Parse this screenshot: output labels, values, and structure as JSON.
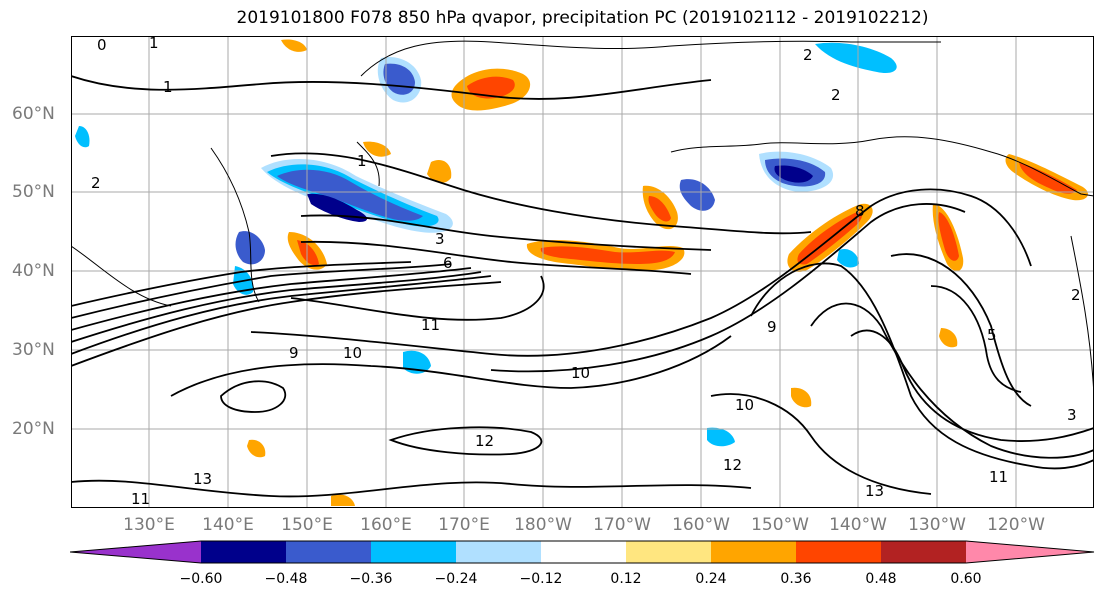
{
  "title": "2019101800 F078 850 hPa qvapor, precipitation PC (2019102112 - 2019102212)",
  "lat_labels": [
    "60°N",
    "50°N",
    "40°N",
    "30°N",
    "20°N"
  ],
  "lon_labels": [
    "130°E",
    "140°E",
    "150°E",
    "160°E",
    "170°E",
    "180°W",
    "170°W",
    "160°W",
    "150°W",
    "140°W",
    "130°W",
    "120°W"
  ],
  "colorbar": {
    "labels": [
      "−0.60",
      "−0.48",
      "−0.36",
      "−0.24",
      "−0.12",
      "0.12",
      "0.24",
      "0.36",
      "0.48",
      "0.60"
    ],
    "colors": [
      "#9932cc",
      "#00008b",
      "#3a5bcd",
      "#00bfff",
      "#b0e0ff",
      "#ffffff",
      "#ffe680",
      "#ffa500",
      "#ff4500",
      "#b22222",
      "#ff88aa"
    ]
  },
  "contour_labels": [
    "0",
    "1",
    "1",
    "1",
    "2",
    "2",
    "2",
    "2",
    "3",
    "3",
    "5",
    "6",
    "8",
    "9",
    "9",
    "10",
    "10",
    "10",
    "11",
    "11",
    "11",
    "12",
    "12",
    "13",
    "13"
  ]
}
